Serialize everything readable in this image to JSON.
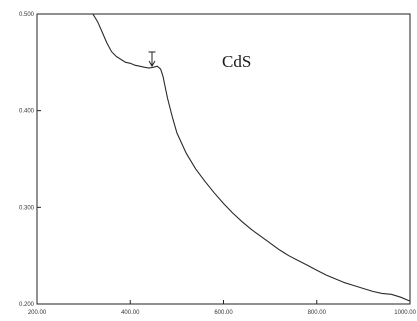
{
  "chart_data": {
    "type": "line",
    "title": "",
    "xlabel": "",
    "ylabel": "",
    "xlim": [
      200,
      1000
    ],
    "ylim": [
      0.2,
      0.5
    ],
    "x_ticks": [
      200,
      400,
      600,
      800,
      1000
    ],
    "x_tick_labels": [
      "200.00",
      "400.00",
      "600.00",
      "800.00",
      "1000.00"
    ],
    "y_ticks": [
      0.2,
      0.3,
      0.4,
      0.5
    ],
    "y_tick_labels": [
      "0.200",
      "0.300",
      "0.400",
      "0.500"
    ],
    "grid": false,
    "annotation": "CdS",
    "colors": {
      "line": "#2a2a2a",
      "axis": "#222222"
    },
    "series": [
      {
        "x": [
          320,
          330,
          340,
          350,
          360,
          370,
          380,
          390,
          400,
          410,
          420,
          430,
          440,
          450,
          458,
          465,
          470,
          480,
          490,
          500,
          520,
          540,
          560,
          580,
          600,
          620,
          640,
          660,
          680,
          700,
          720,
          740,
          760,
          780,
          800,
          820,
          840,
          860,
          880,
          900,
          920,
          940,
          960,
          980,
          1000
        ],
        "y": [
          0.5,
          0.492,
          0.481,
          0.47,
          0.461,
          0.456,
          0.453,
          0.45,
          0.449,
          0.447,
          0.446,
          0.445,
          0.444,
          0.445,
          0.446,
          0.443,
          0.436,
          0.413,
          0.394,
          0.377,
          0.356,
          0.34,
          0.327,
          0.315,
          0.304,
          0.294,
          0.285,
          0.277,
          0.27,
          0.263,
          0.256,
          0.25,
          0.245,
          0.24,
          0.235,
          0.23,
          0.226,
          0.222,
          0.219,
          0.216,
          0.213,
          0.211,
          0.21,
          0.207,
          0.203
        ]
      }
    ]
  }
}
